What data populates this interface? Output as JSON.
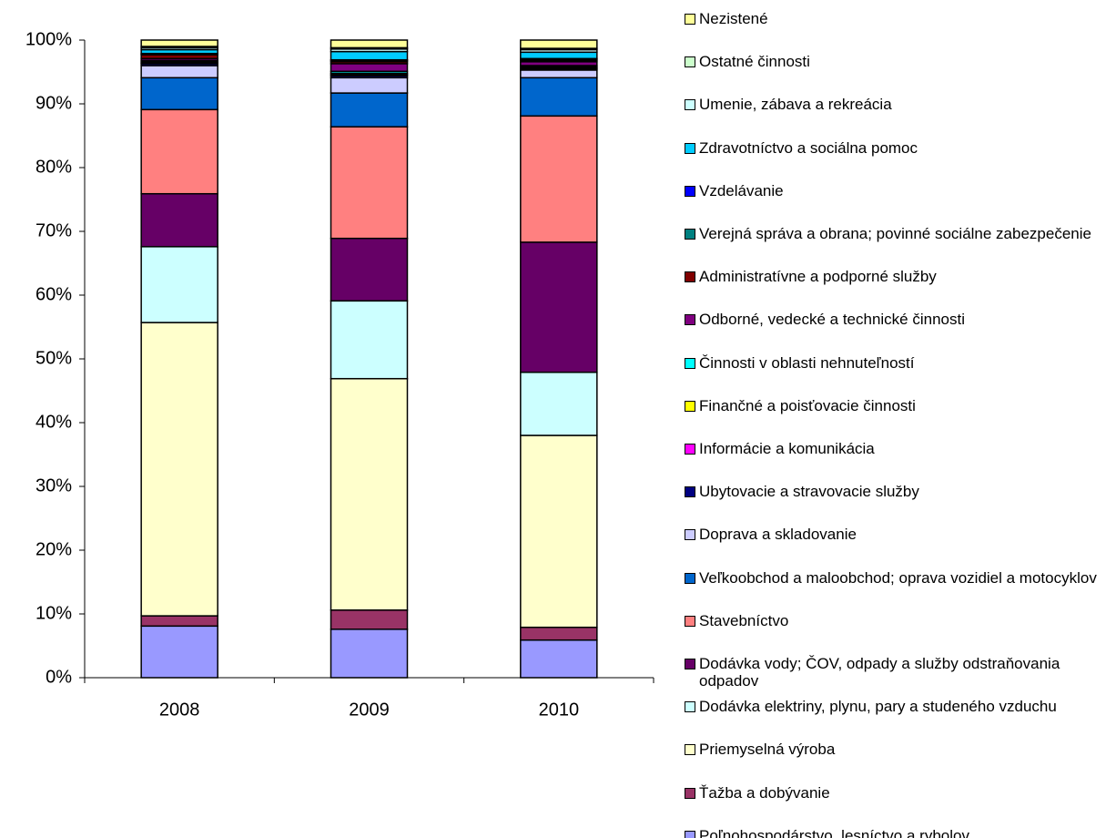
{
  "chart_data": {
    "type": "stacked_bar",
    "categories": [
      "2008",
      "2009",
      "2010"
    ],
    "ylim": [
      0,
      100
    ],
    "yticks": [
      {
        "value": 0,
        "label": "0%"
      },
      {
        "value": 10,
        "label": "10%"
      },
      {
        "value": 20,
        "label": "20%"
      },
      {
        "value": 30,
        "label": "30%"
      },
      {
        "value": 40,
        "label": "40%"
      },
      {
        "value": 50,
        "label": "50%"
      },
      {
        "value": 60,
        "label": "60%"
      },
      {
        "value": 70,
        "label": "70%"
      },
      {
        "value": 80,
        "label": "80%"
      },
      {
        "value": 90,
        "label": "90%"
      },
      {
        "value": 100,
        "label": "100%"
      }
    ],
    "grid": false,
    "legend": "right",
    "series": [
      {
        "name": "Poľnohospodárstvo, lesníctvo a rybolov",
        "color": "#9999ff",
        "values": [
          8.1,
          7.6,
          5.9
        ]
      },
      {
        "name": "Ťažba a dobývanie",
        "color": "#993366",
        "values": [
          1.6,
          3.0,
          2.0
        ]
      },
      {
        "name": "Priemyselná výroba",
        "color": "#ffffcc",
        "values": [
          46.0,
          36.3,
          30.1
        ]
      },
      {
        "name": "Dodávka elektriny, plynu, pary a studeného vzduchu",
        "color": "#ccffff",
        "values": [
          11.9,
          12.2,
          9.9
        ]
      },
      {
        "name": "Dodávka vody; ČOV, odpady a služby odstraňovania odpadov",
        "color": "#660066",
        "values": [
          8.3,
          9.8,
          20.4
        ]
      },
      {
        "name": "Stavebníctvo",
        "color": "#ff8080",
        "values": [
          13.2,
          17.5,
          19.8
        ]
      },
      {
        "name": "Veľkoobchod a maloobchod; oprava vozidiel a motocyklov",
        "color": "#0066cc",
        "values": [
          5.0,
          5.3,
          6.0
        ]
      },
      {
        "name": "Doprava a skladovanie",
        "color": "#ccccff",
        "values": [
          1.9,
          2.4,
          1.2
        ]
      },
      {
        "name": "Ubytovacie a stravovacie služby",
        "color": "#000080",
        "values": [
          0.3,
          0.3,
          0.2
        ]
      },
      {
        "name": "Informácie a komunikácia",
        "color": "#ff00ff",
        "values": [
          0.1,
          0.2,
          0.1
        ]
      },
      {
        "name": "Finančné a poisťovacie činnosti",
        "color": "#ffff00",
        "values": [
          0.2,
          0.2,
          0.2
        ]
      },
      {
        "name": "Činnosti v oblasti nehnuteľností",
        "color": "#00ffff",
        "values": [
          0.2,
          0.3,
          0.2
        ]
      },
      {
        "name": "Odborné, vedecké a technické činnosti",
        "color": "#800080",
        "values": [
          0.3,
          1.2,
          0.6
        ]
      },
      {
        "name": "Administratívne a podporné služby",
        "color": "#800000",
        "values": [
          0.6,
          0.3,
          0.2
        ]
      },
      {
        "name": "Verejná správa a obrana; povinné sociálne zabezpečenie",
        "color": "#008080",
        "values": [
          0.1,
          0.2,
          0.2
        ]
      },
      {
        "name": "Vzdelávanie",
        "color": "#0000ff",
        "values": [
          0.1,
          0.1,
          0.1
        ]
      },
      {
        "name": "Zdravotníctvo a sociálna pomoc",
        "color": "#00ccff",
        "values": [
          0.6,
          1.3,
          1.0
        ]
      },
      {
        "name": "Umenie, zábava a rekreácia",
        "color": "#ccffff",
        "values": [
          0.3,
          0.4,
          0.4
        ]
      },
      {
        "name": "Ostatné činnosti",
        "color": "#ccffcc",
        "values": [
          0.2,
          0.2,
          0.2
        ]
      },
      {
        "name": "Nezistené",
        "color": "#ffff99",
        "values": [
          1.0,
          1.2,
          1.3
        ]
      }
    ]
  }
}
